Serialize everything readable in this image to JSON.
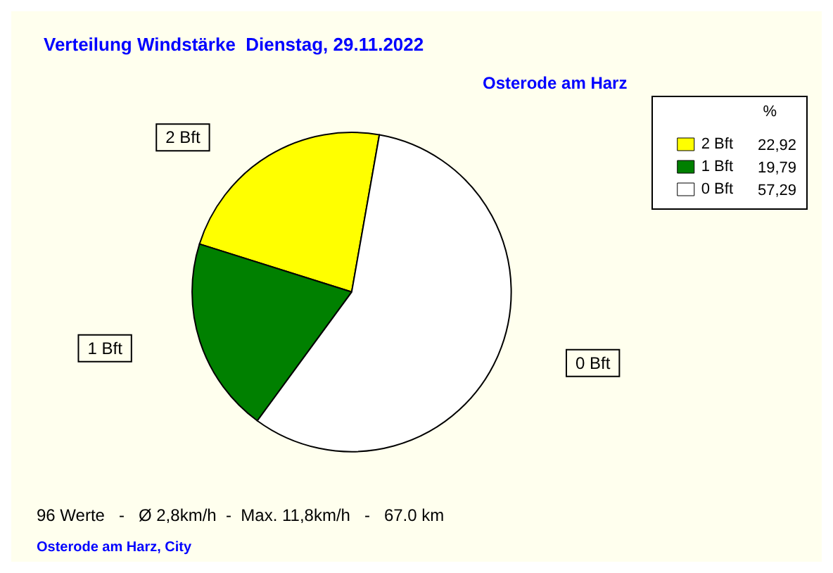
{
  "chart_data": {
    "type": "pie",
    "title": "Verteilung Windstärke  Dienstag, 29.11.2022",
    "subtitle": "Osterode am Harz",
    "legend_title": "%",
    "legend": "top right",
    "categories": [
      "2 Bft",
      "1 Bft",
      "0 Bft"
    ],
    "values": [
      22.92,
      19.79,
      57.29
    ],
    "value_labels": [
      "22,92",
      "19,79",
      "57,29"
    ],
    "colors": [
      "#ffff00",
      "#008000",
      "#ffffff"
    ],
    "annotations": [
      "96 Werte   -   Ø 2,8km/h  -  Max. 11,8km/h   -   67.0 km",
      "Osterode am Harz, City"
    ]
  }
}
